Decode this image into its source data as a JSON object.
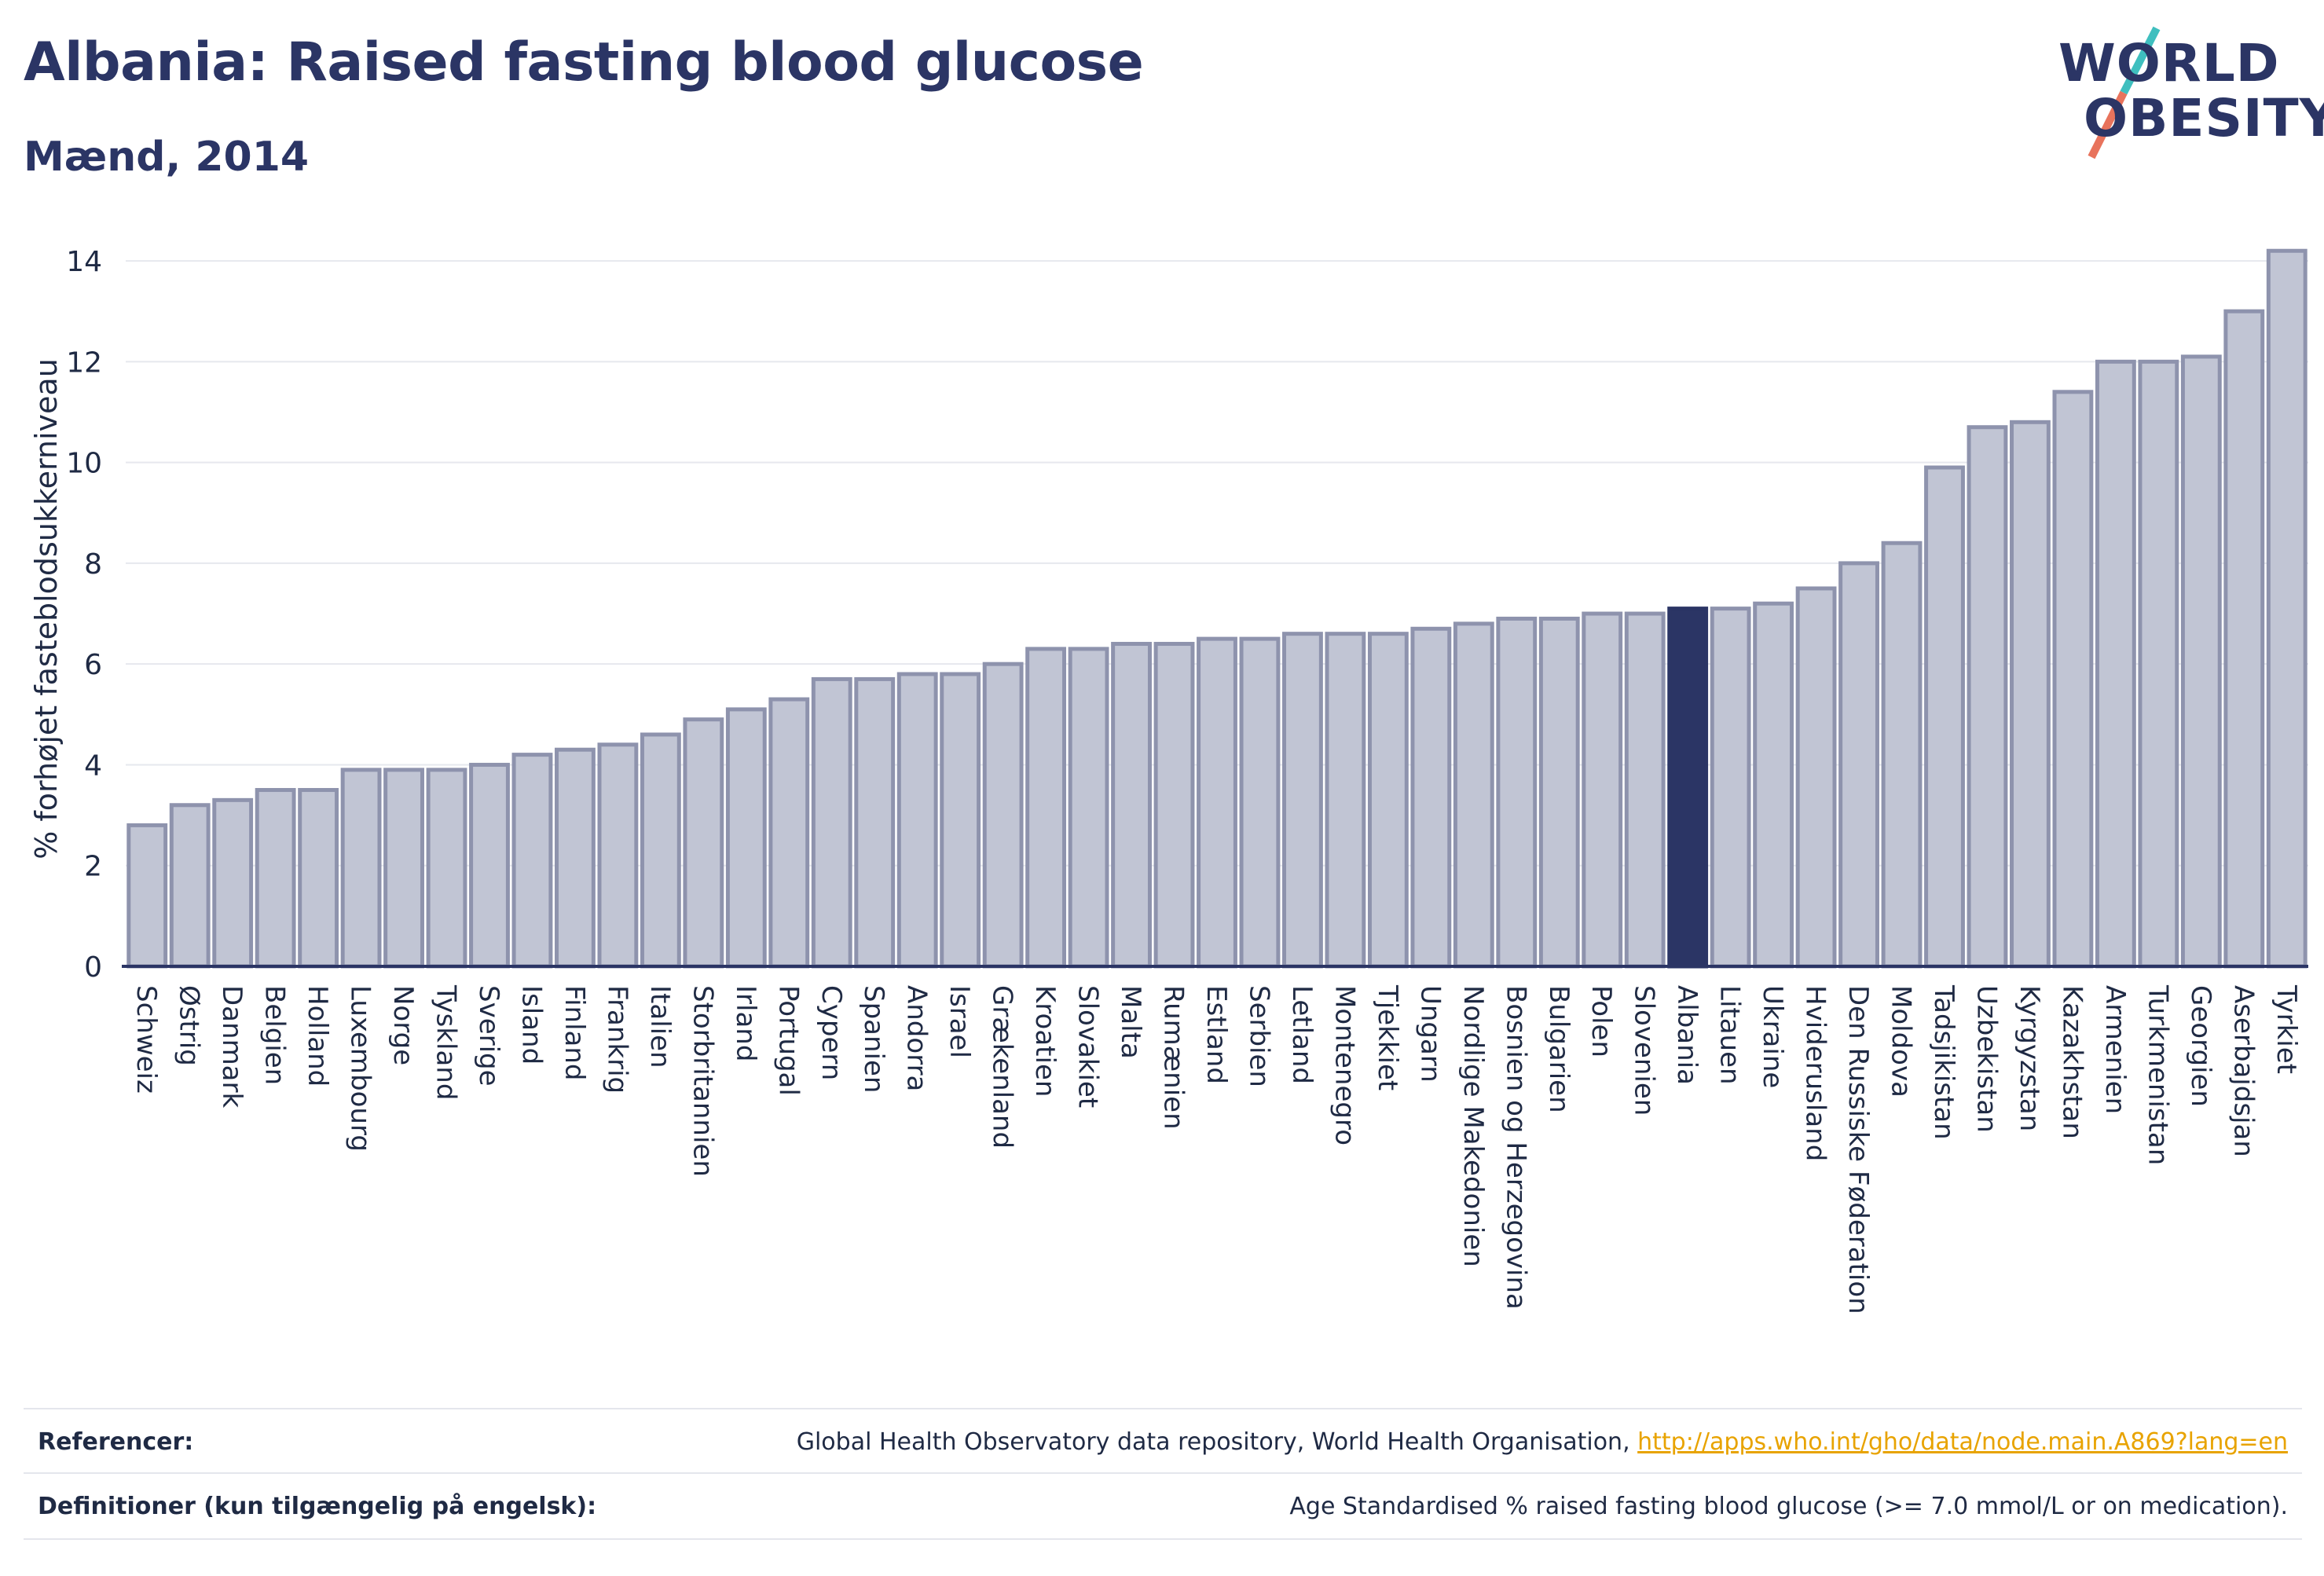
{
  "header": {
    "title": "Albania: Raised fasting blood glucose",
    "subtitle": "Mænd, 2014"
  },
  "logo": {
    "line1": "WORLD",
    "line2": "OBESITY"
  },
  "chart_data": {
    "type": "bar",
    "ylabel": "% forhøjet fasteblodsukkerniveau",
    "xlabel": "",
    "ylim": [
      0,
      14.5
    ],
    "yticks": [
      0,
      2,
      4,
      6,
      8,
      10,
      12,
      14
    ],
    "grid": true,
    "highlight": "Albania",
    "colors": {
      "bar": "#c1c5d4",
      "bar_edge": "#8e93ad",
      "highlight": "#2b3565"
    },
    "categories": [
      "Schweiz",
      "Østrig",
      "Danmark",
      "Belgien",
      "Holland",
      "Luxembourg",
      "Norge",
      "Tyskland",
      "Sverige",
      "Island",
      "Finland",
      "Frankrig",
      "Italien",
      "Storbritannien",
      "Irland",
      "Portugal",
      "Cypern",
      "Spanien",
      "Andorra",
      "Israel",
      "Grækenland",
      "Kroatien",
      "Slovakiet",
      "Malta",
      "Rumænien",
      "Estland",
      "Serbien",
      "Letland",
      "Montenegro",
      "Tjekkiet",
      "Ungarn",
      "Nordlige Makedonien",
      "Bosnien og Herzegovina",
      "Bulgarien",
      "Polen",
      "Slovenien",
      "Albania",
      "Litauen",
      "Ukraine",
      "Hviderusland",
      "Den Russiske Føderation",
      "Moldova",
      "Tadsjikistan",
      "Uzbekistan",
      "Kyrgyzstan",
      "Kazakhstan",
      "Armenien",
      "Turkmenistan",
      "Georgien",
      "Aserbajdsjan",
      "Tyrkiet"
    ],
    "values": [
      2.8,
      3.2,
      3.3,
      3.5,
      3.5,
      3.9,
      3.9,
      3.9,
      4.0,
      4.2,
      4.3,
      4.4,
      4.6,
      4.9,
      5.1,
      5.3,
      5.7,
      5.7,
      5.8,
      5.8,
      6.0,
      6.3,
      6.3,
      6.4,
      6.4,
      6.5,
      6.5,
      6.6,
      6.6,
      6.6,
      6.7,
      6.8,
      6.9,
      6.9,
      7.0,
      7.0,
      7.1,
      7.1,
      7.2,
      7.5,
      8.0,
      8.4,
      9.9,
      10.7,
      10.8,
      11.4,
      12.0,
      12.0,
      12.1,
      13.0,
      14.2
    ]
  },
  "footer": {
    "references_label": "Referencer:",
    "references_text": "Global Health Observatory data repository, World Health Organisation, ",
    "references_link": "http://apps.who.int/gho/data/node.main.A869?lang=en",
    "definitions_label": "Definitioner (kun tilgængelig på engelsk):",
    "definitions_text": "Age Standardised % raised fasting blood glucose (>= 7.0 mmol/L or on medication)."
  }
}
